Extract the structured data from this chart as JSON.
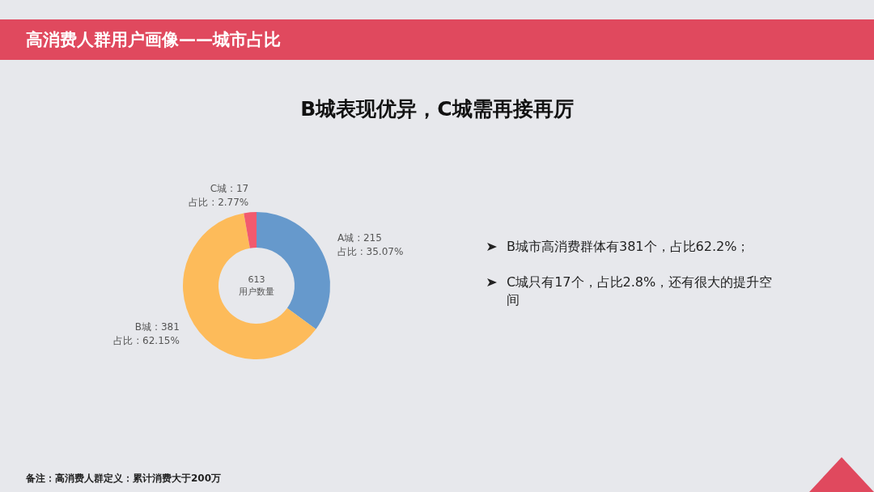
{
  "chart_data": {
    "type": "donut",
    "title": "高消费人群用户画像——城市占比",
    "subtitle": "B城表现优异，C城需再接再厉",
    "categories": [
      "A城",
      "B城",
      "C城"
    ],
    "values": [
      215,
      381,
      17
    ],
    "colors": [
      "#6699cc",
      "#fdbb5a",
      "#f25a6e"
    ],
    "annotations": [
      "613\n用户数量",
      "占比 : 35.07%",
      "占比 : 62.15%",
      "占比 : 2.77%",
      "B城市高消费群体有381个，占比62.2%；",
      "C城只有17个，占比2.8%，还有很大的提升空间",
      "备注：高消费人群定义：累计消费大于200万"
    ],
    "value_labels": [
      ": 215",
      ": 381",
      ": 17"
    ]
  }
}
